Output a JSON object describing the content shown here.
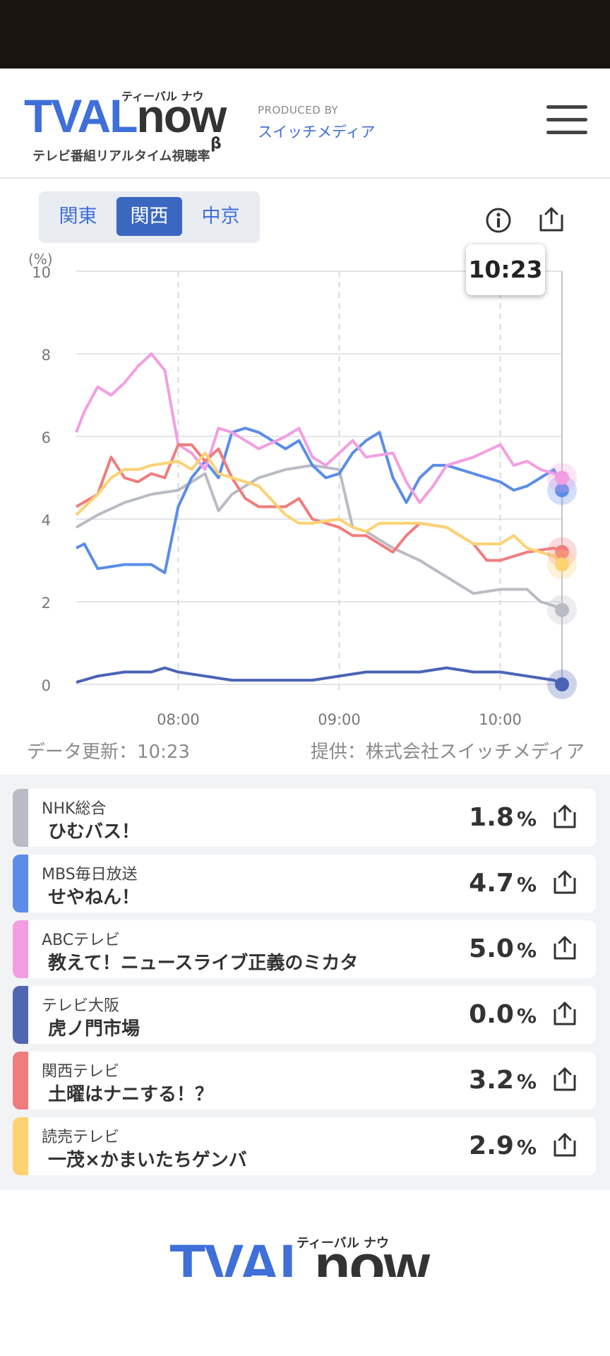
{
  "header": {
    "logo_text_tval": "TVAL",
    "logo_text_now": "now",
    "logo_beta": "β",
    "logo_kana": "ティーバル ナウ",
    "logo_subtitle": "テレビ番組リアルタイム視聴率",
    "produced_by_label": "PRODUCED BY",
    "producer_name": "スイッチメディア",
    "menu_icon": "hamburger-menu-icon"
  },
  "region_tabs": [
    {
      "label": "関東",
      "active": false
    },
    {
      "label": "関西",
      "active": true
    },
    {
      "label": "中京",
      "active": false
    }
  ],
  "toolbar": {
    "info_icon": "info-icon",
    "share_icon": "share-icon"
  },
  "tooltip_time": "10:23",
  "chart_data": {
    "type": "line",
    "y_unit_label": "(%)",
    "ylim": [
      0,
      10
    ],
    "y_ticks": [
      "0",
      "2",
      "4",
      "6",
      "8",
      "10"
    ],
    "x_ticks": [
      "08:00",
      "09:00",
      "10:00"
    ],
    "x_range_minutes": [
      442,
      623
    ],
    "x_tick_minutes": [
      480,
      540,
      600
    ],
    "grid": true,
    "current_time": "10:23",
    "series": [
      {
        "name": "NHK総合",
        "color": "#b9bcc4",
        "x": [
          442,
          450,
          460,
          470,
          480,
          490,
          495,
          500,
          510,
          520,
          530,
          540,
          545,
          550,
          560,
          570,
          580,
          590,
          600,
          610,
          615,
          620,
          623
        ],
        "y": [
          3.8,
          4.1,
          4.4,
          4.6,
          4.7,
          5.1,
          4.2,
          4.6,
          5.0,
          5.2,
          5.3,
          5.2,
          3.8,
          3.7,
          3.3,
          3.0,
          2.6,
          2.2,
          2.3,
          2.3,
          2.0,
          1.9,
          1.8
        ]
      },
      {
        "name": "MBS毎日放送",
        "color": "#5b8de8",
        "x": [
          442,
          445,
          450,
          460,
          470,
          475,
          480,
          485,
          490,
          495,
          500,
          505,
          510,
          520,
          525,
          530,
          535,
          540,
          545,
          550,
          555,
          560,
          565,
          570,
          575,
          580,
          590,
          600,
          605,
          610,
          615,
          620,
          623
        ],
        "y": [
          3.3,
          3.4,
          2.8,
          2.9,
          2.9,
          2.7,
          4.3,
          5.0,
          5.4,
          5.0,
          6.1,
          6.2,
          6.1,
          5.7,
          5.9,
          5.3,
          5.0,
          5.1,
          5.6,
          5.9,
          6.1,
          5.0,
          4.4,
          5.0,
          5.3,
          5.3,
          5.1,
          4.9,
          4.7,
          4.8,
          5.0,
          5.2,
          4.7
        ]
      },
      {
        "name": "ABCテレビ",
        "color": "#f39ee2",
        "x": [
          442,
          445,
          450,
          455,
          460,
          465,
          470,
          475,
          480,
          485,
          490,
          495,
          500,
          510,
          520,
          525,
          530,
          535,
          540,
          545,
          550,
          560,
          565,
          570,
          575,
          580,
          590,
          600,
          605,
          610,
          615,
          620,
          623
        ],
        "y": [
          6.1,
          6.6,
          7.2,
          7.0,
          7.3,
          7.7,
          8.0,
          7.6,
          5.8,
          5.6,
          5.2,
          6.2,
          6.1,
          5.7,
          6.0,
          6.2,
          5.5,
          5.3,
          5.6,
          5.9,
          5.5,
          5.6,
          4.9,
          4.4,
          4.8,
          5.3,
          5.5,
          5.8,
          5.3,
          5.4,
          5.2,
          5.1,
          5.0
        ]
      },
      {
        "name": "テレビ大阪",
        "color": "#4a63b5",
        "x": [
          442,
          450,
          460,
          470,
          475,
          480,
          490,
          500,
          510,
          520,
          530,
          540,
          550,
          560,
          570,
          580,
          590,
          600,
          610,
          620,
          623
        ],
        "y": [
          0.05,
          0.2,
          0.3,
          0.3,
          0.4,
          0.3,
          0.2,
          0.1,
          0.1,
          0.1,
          0.1,
          0.2,
          0.3,
          0.3,
          0.3,
          0.4,
          0.3,
          0.3,
          0.2,
          0.1,
          0.0
        ]
      },
      {
        "name": "関西テレビ",
        "color": "#f07d7d",
        "x": [
          442,
          450,
          455,
          460,
          465,
          470,
          475,
          480,
          485,
          490,
          495,
          500,
          505,
          510,
          515,
          520,
          525,
          530,
          540,
          545,
          550,
          560,
          565,
          570,
          580,
          590,
          595,
          600,
          610,
          620,
          623
        ],
        "y": [
          4.3,
          4.6,
          5.5,
          5.0,
          4.9,
          5.1,
          5.0,
          5.8,
          5.8,
          5.4,
          5.7,
          5.0,
          4.5,
          4.3,
          4.3,
          4.3,
          4.5,
          4.0,
          3.8,
          3.6,
          3.6,
          3.2,
          3.6,
          3.9,
          3.8,
          3.4,
          3.0,
          3.0,
          3.2,
          3.3,
          3.2
        ]
      },
      {
        "name": "読売テレビ",
        "color": "#fcd273",
        "x": [
          442,
          450,
          455,
          460,
          465,
          470,
          480,
          485,
          490,
          495,
          500,
          505,
          510,
          520,
          525,
          530,
          540,
          545,
          550,
          555,
          560,
          570,
          580,
          590,
          600,
          605,
          610,
          620,
          623
        ],
        "y": [
          4.1,
          4.6,
          5.0,
          5.2,
          5.2,
          5.3,
          5.4,
          5.2,
          5.6,
          5.1,
          5.0,
          4.9,
          4.8,
          4.1,
          3.9,
          3.9,
          4.0,
          3.8,
          3.7,
          3.9,
          3.9,
          3.9,
          3.8,
          3.4,
          3.4,
          3.6,
          3.3,
          3.1,
          2.9
        ]
      }
    ]
  },
  "update_info": {
    "updated": "データ更新：10:23",
    "provider": "提供：株式会社スイッチメディア"
  },
  "programs": [
    {
      "station": "NHK総合",
      "title": "ひむバス！",
      "rating": "1.8",
      "unit": "%",
      "color": "#b9bcc4"
    },
    {
      "station": "MBS毎日放送",
      "title": "せやねん！",
      "rating": "4.7",
      "unit": "%",
      "color": "#5b8de8"
    },
    {
      "station": "ABCテレビ",
      "title": "教えて！ニュースライブ正義のミカタ",
      "rating": "5.0",
      "unit": "%",
      "color": "#f39ee2"
    },
    {
      "station": "テレビ大阪",
      "title": "虎ノ門市場",
      "rating": "0.0",
      "unit": "%",
      "color": "#5166b0"
    },
    {
      "station": "関西テレビ",
      "title": "土曜はナニする！？",
      "rating": "3.2",
      "unit": "%",
      "color": "#f07d7d"
    },
    {
      "station": "読売テレビ",
      "title": "一茂×かまいたちゲンバ",
      "rating": "2.9",
      "unit": "%",
      "color": "#fcd273"
    }
  ]
}
